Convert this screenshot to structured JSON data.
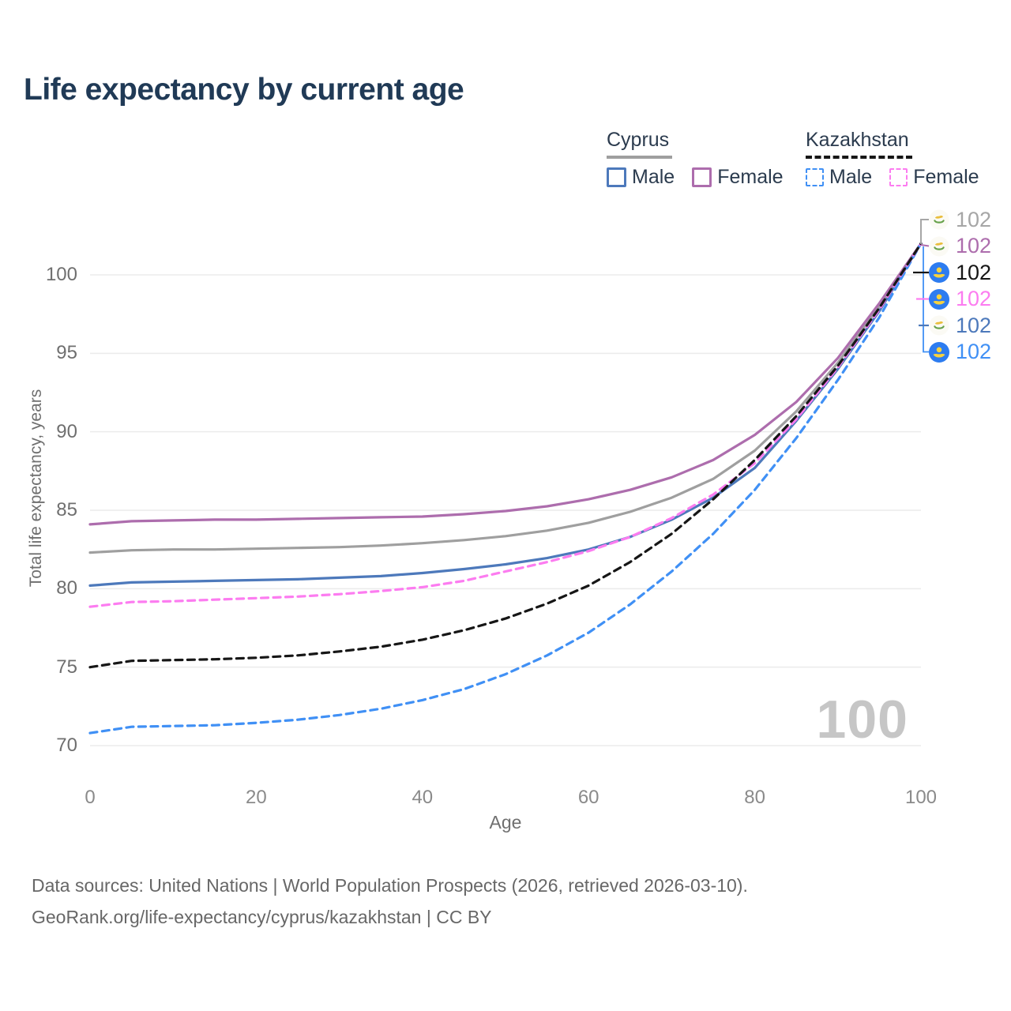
{
  "title": "Life expectancy by current age",
  "legend": {
    "groups": [
      {
        "name": "Cyprus",
        "line_style": "solid",
        "underline_color": "#9f9f9f",
        "items": [
          {
            "label": "Male",
            "color": "#4d79bb"
          },
          {
            "label": "Female",
            "color": "#ad6dad"
          }
        ]
      },
      {
        "name": "Kazakhstan",
        "line_style": "dashed",
        "underline_color": "#161616",
        "items": [
          {
            "label": "Male",
            "color": "#4090f5"
          },
          {
            "label": "Female",
            "color": "#fc7cf0"
          }
        ]
      }
    ]
  },
  "chart_data": {
    "type": "line",
    "title": "Life expectancy by current age",
    "xlabel": "Age",
    "ylabel": "Total life expectancy, years",
    "x_ticks": [
      0,
      20,
      40,
      60,
      80,
      100
    ],
    "y_ticks": [
      70,
      75,
      80,
      85,
      90,
      95,
      100
    ],
    "xlim": [
      0,
      100
    ],
    "ylim": [
      68.5,
      103.5
    ],
    "grid": "horizontal",
    "legend_position": "top-right",
    "x": [
      0,
      5,
      10,
      15,
      20,
      25,
      30,
      35,
      40,
      45,
      50,
      55,
      60,
      65,
      70,
      75,
      80,
      85,
      90,
      95,
      100
    ],
    "series": [
      {
        "name": "Cyprus Male",
        "country": "Cyprus",
        "sex": "Male",
        "style": "solid",
        "color": "#4d79bb",
        "values": [
          80.2,
          80.4,
          80.45,
          80.5,
          80.55,
          80.6,
          80.7,
          80.8,
          81.0,
          81.25,
          81.55,
          81.95,
          82.5,
          83.3,
          84.4,
          85.8,
          87.7,
          90.7,
          94.0,
          97.7,
          102
        ]
      },
      {
        "name": "Cyprus Female",
        "country": "Cyprus",
        "sex": "Female",
        "style": "solid",
        "color": "#ad6dad",
        "values": [
          84.1,
          84.3,
          84.35,
          84.4,
          84.4,
          84.45,
          84.5,
          84.55,
          84.6,
          84.75,
          84.95,
          85.25,
          85.7,
          86.3,
          87.1,
          88.2,
          89.8,
          91.9,
          94.7,
          98.2,
          102
        ]
      },
      {
        "name": "Cyprus Both sexes",
        "country": "Cyprus",
        "sex": "Both",
        "style": "solid",
        "color": "#9f9f9f",
        "values": [
          82.3,
          82.45,
          82.5,
          82.5,
          82.55,
          82.6,
          82.65,
          82.75,
          82.9,
          83.1,
          83.35,
          83.7,
          84.2,
          84.9,
          85.8,
          87.0,
          88.8,
          91.3,
          94.4,
          98.0,
          102
        ]
      },
      {
        "name": "Kazakhstan Male",
        "country": "Kazakhstan",
        "sex": "Male",
        "style": "dashed",
        "color": "#4090f5",
        "values": [
          70.8,
          71.2,
          71.25,
          71.3,
          71.45,
          71.65,
          71.95,
          72.35,
          72.9,
          73.6,
          74.55,
          75.75,
          77.2,
          79.0,
          81.1,
          83.5,
          86.3,
          89.6,
          93.3,
          97.3,
          102
        ]
      },
      {
        "name": "Kazakhstan Female",
        "country": "Kazakhstan",
        "sex": "Female",
        "style": "dashed",
        "color": "#fc7cf0",
        "values": [
          78.85,
          79.15,
          79.2,
          79.3,
          79.4,
          79.5,
          79.65,
          79.85,
          80.1,
          80.5,
          81.1,
          81.7,
          82.4,
          83.3,
          84.5,
          86.0,
          88.0,
          90.8,
          94.1,
          97.8,
          102
        ]
      },
      {
        "name": "Kazakhstan Both sexes",
        "country": "Kazakhstan",
        "sex": "Both",
        "style": "dashed",
        "color": "#161616",
        "values": [
          75.0,
          75.4,
          75.45,
          75.5,
          75.6,
          75.75,
          76.0,
          76.3,
          76.75,
          77.35,
          78.1,
          79.05,
          80.2,
          81.7,
          83.5,
          85.7,
          88.2,
          91.0,
          94.2,
          97.9,
          102
        ]
      }
    ]
  },
  "end_labels": [
    {
      "flag": "cyprus",
      "series": "Cyprus Both sexes",
      "value": "102",
      "color": "#a6a6a6"
    },
    {
      "flag": "cyprus",
      "series": "Cyprus Female",
      "value": "102",
      "color": "#ad6dad"
    },
    {
      "flag": "kazakhstan",
      "series": "Kazakhstan Both sexes",
      "value": "102",
      "color": "#161616"
    },
    {
      "flag": "kazakhstan",
      "series": "Kazakhstan Female",
      "value": "102",
      "color": "#fc7cf0"
    },
    {
      "flag": "cyprus",
      "series": "Cyprus Male",
      "value": "102",
      "color": "#4d79bb"
    },
    {
      "flag": "kazakhstan",
      "series": "Kazakhstan Male",
      "value": "102",
      "color": "#4090f5"
    }
  ],
  "watermark": "100",
  "footer": {
    "line1": "Data sources: United Nations | World Population Prospects (2026, retrieved 2026-03-10).",
    "line2": "GeoRank.org/life-expectancy/cyprus/kazakhstan | CC BY"
  }
}
